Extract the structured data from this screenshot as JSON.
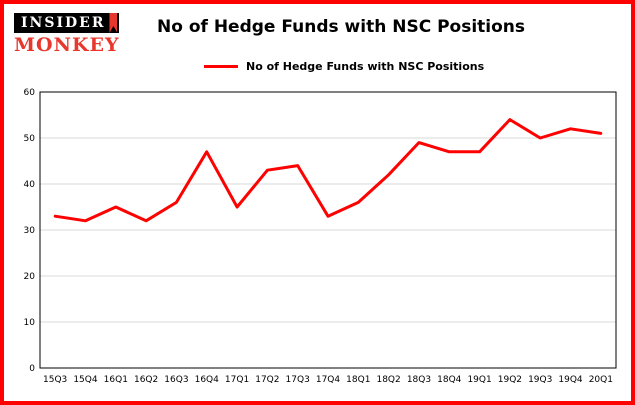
{
  "brand": {
    "line1": "INSIDER",
    "line2": "MONKEY"
  },
  "title": "No of Hedge Funds with NSC Positions",
  "legend": "No of Hedge Funds with NSC Positions",
  "colors": {
    "frame_border": "#fe0101",
    "line": "#fe0101",
    "grid": "#d9d9d9",
    "plot_border": "#000000",
    "text": "#000000",
    "logo_red": "#e8372c",
    "logo_black": "#000000"
  },
  "chart_data": {
    "type": "line",
    "title": "No of Hedge Funds with NSC Positions",
    "categories": [
      "15Q3",
      "15Q4",
      "16Q1",
      "16Q2",
      "16Q3",
      "16Q4",
      "17Q1",
      "17Q2",
      "17Q3",
      "17Q4",
      "18Q1",
      "18Q2",
      "18Q3",
      "18Q4",
      "19Q1",
      "19Q2",
      "19Q3",
      "19Q4",
      "20Q1"
    ],
    "values": [
      33,
      32,
      35,
      32,
      36,
      47,
      35,
      43,
      44,
      33,
      36,
      42,
      49,
      47,
      47,
      54,
      50,
      52,
      51
    ],
    "series_name": "No of Hedge Funds with NSC Positions",
    "xlabel": "",
    "ylabel": "",
    "ylim": [
      0,
      60
    ],
    "yticks": [
      0,
      10,
      20,
      30,
      40,
      50,
      60
    ],
    "grid": true,
    "legend_position": "top"
  }
}
